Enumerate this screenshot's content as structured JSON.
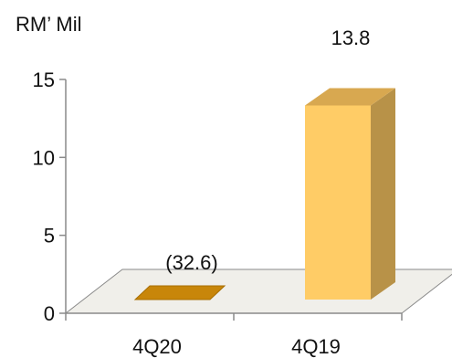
{
  "chart_data": {
    "type": "bar",
    "ylabel": "RM’ Mil",
    "categories": [
      "4Q20",
      "4Q19"
    ],
    "values": [
      -32.6,
      13.8
    ],
    "data_labels": [
      "(32.6)",
      "13.8"
    ],
    "ylim": [
      0,
      15
    ],
    "yticks": [
      0,
      5,
      10,
      15
    ],
    "ytick_labels": [
      "0",
      "5",
      "10",
      "15"
    ],
    "grid": false,
    "legend": "none",
    "colors": {
      "negative_bar_face": "#C8860A",
      "positive_bar_front": "#FFCC66",
      "positive_bar_side": "#B89248",
      "positive_bar_top": "#D8A850",
      "floor": "#F0EFEA",
      "axis": "#8A8A8A"
    }
  }
}
